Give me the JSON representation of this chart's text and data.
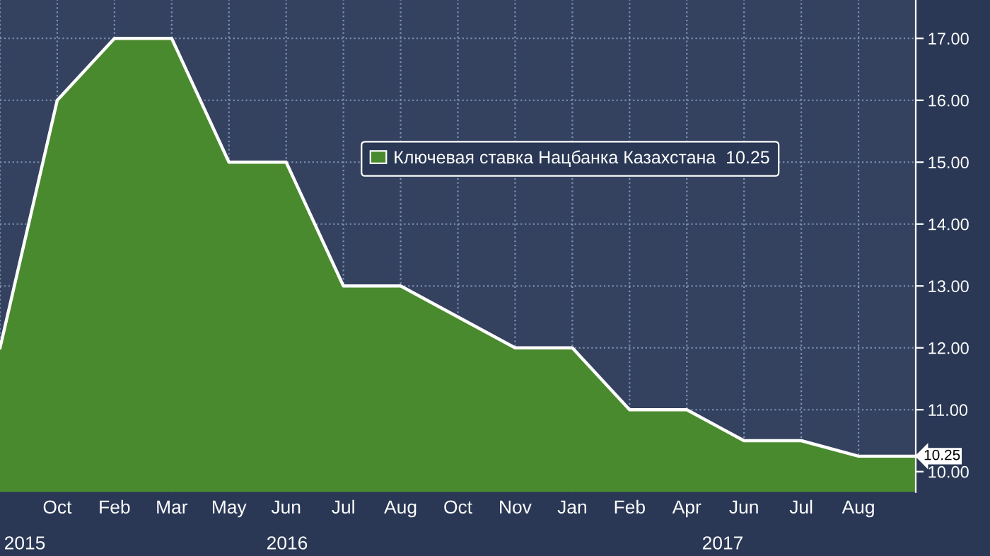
{
  "chart_data": {
    "type": "area",
    "categories": [
      null,
      "Oct",
      "Feb",
      "Mar",
      "May",
      "Jun",
      "Jul",
      "Aug",
      "Oct",
      "Nov",
      "Jan",
      "Feb",
      "Apr",
      "Jun",
      "Jul",
      "Aug",
      null
    ],
    "series": [
      {
        "name": "Ключевая ставка Нацбанка Казахстана  10.25",
        "color": "#4a8a2e",
        "values": [
          12,
          16,
          17,
          17,
          15,
          15,
          13,
          13,
          12.5,
          12,
          12,
          11,
          11,
          10.5,
          10.5,
          10.25,
          10.25
        ],
        "value_labels": [
          null,
          null,
          null,
          null,
          null,
          null,
          null,
          null,
          null,
          null,
          null,
          null,
          null,
          null,
          null,
          null,
          "10.25"
        ]
      }
    ],
    "ylim": [
      9.67,
      17.62
    ],
    "yticks": [
      {
        "value": 10,
        "label": "10.00"
      },
      {
        "value": 11,
        "label": "11.00"
      },
      {
        "value": 12,
        "label": "12.00"
      },
      {
        "value": 13,
        "label": "13.00"
      },
      {
        "value": 14,
        "label": "14.00"
      },
      {
        "value": 15,
        "label": "15.00"
      },
      {
        "value": 16,
        "label": "16.00"
      },
      {
        "value": 17,
        "label": "17.00"
      }
    ],
    "annotations": [
      "2015",
      "2016",
      "2017"
    ],
    "grid": true,
    "legend": "top right"
  }
}
